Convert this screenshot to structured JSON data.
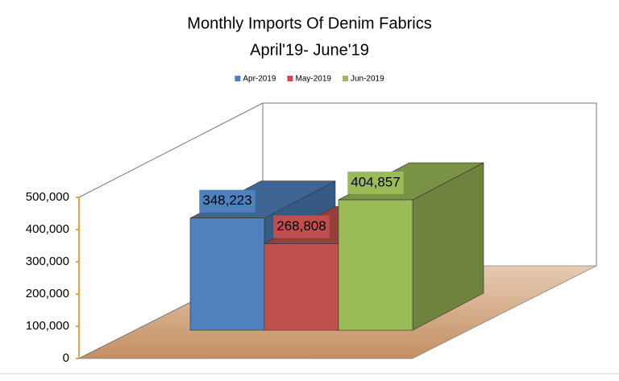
{
  "chart_data": {
    "type": "bar3d",
    "title": "Monthly Imports Of Denim Fabrics",
    "subtitle": "April'19- June'19",
    "categories": [
      null
    ],
    "series": [
      {
        "name": "Apr-2019",
        "color": "#4f81bd",
        "values": [
          348223
        ],
        "value_labels": [
          "348,223"
        ]
      },
      {
        "name": "May-2019",
        "color": "#c0504d",
        "values": [
          268808
        ],
        "value_labels": [
          "268,808"
        ]
      },
      {
        "name": "Jun-2019",
        "color": "#9bbb59",
        "values": [
          404857
        ],
        "value_labels": [
          "404,857"
        ]
      }
    ],
    "ylim": [
      0,
      500000
    ],
    "yticks": [
      {
        "value": 0,
        "label": "0"
      },
      {
        "value": 100000,
        "label": "100,000"
      },
      {
        "value": 200000,
        "label": "200,000"
      },
      {
        "value": 300000,
        "label": "300,000"
      },
      {
        "value": 400000,
        "label": "400,000"
      },
      {
        "value": 500000,
        "label": "500,000"
      }
    ],
    "legend": "top"
  }
}
